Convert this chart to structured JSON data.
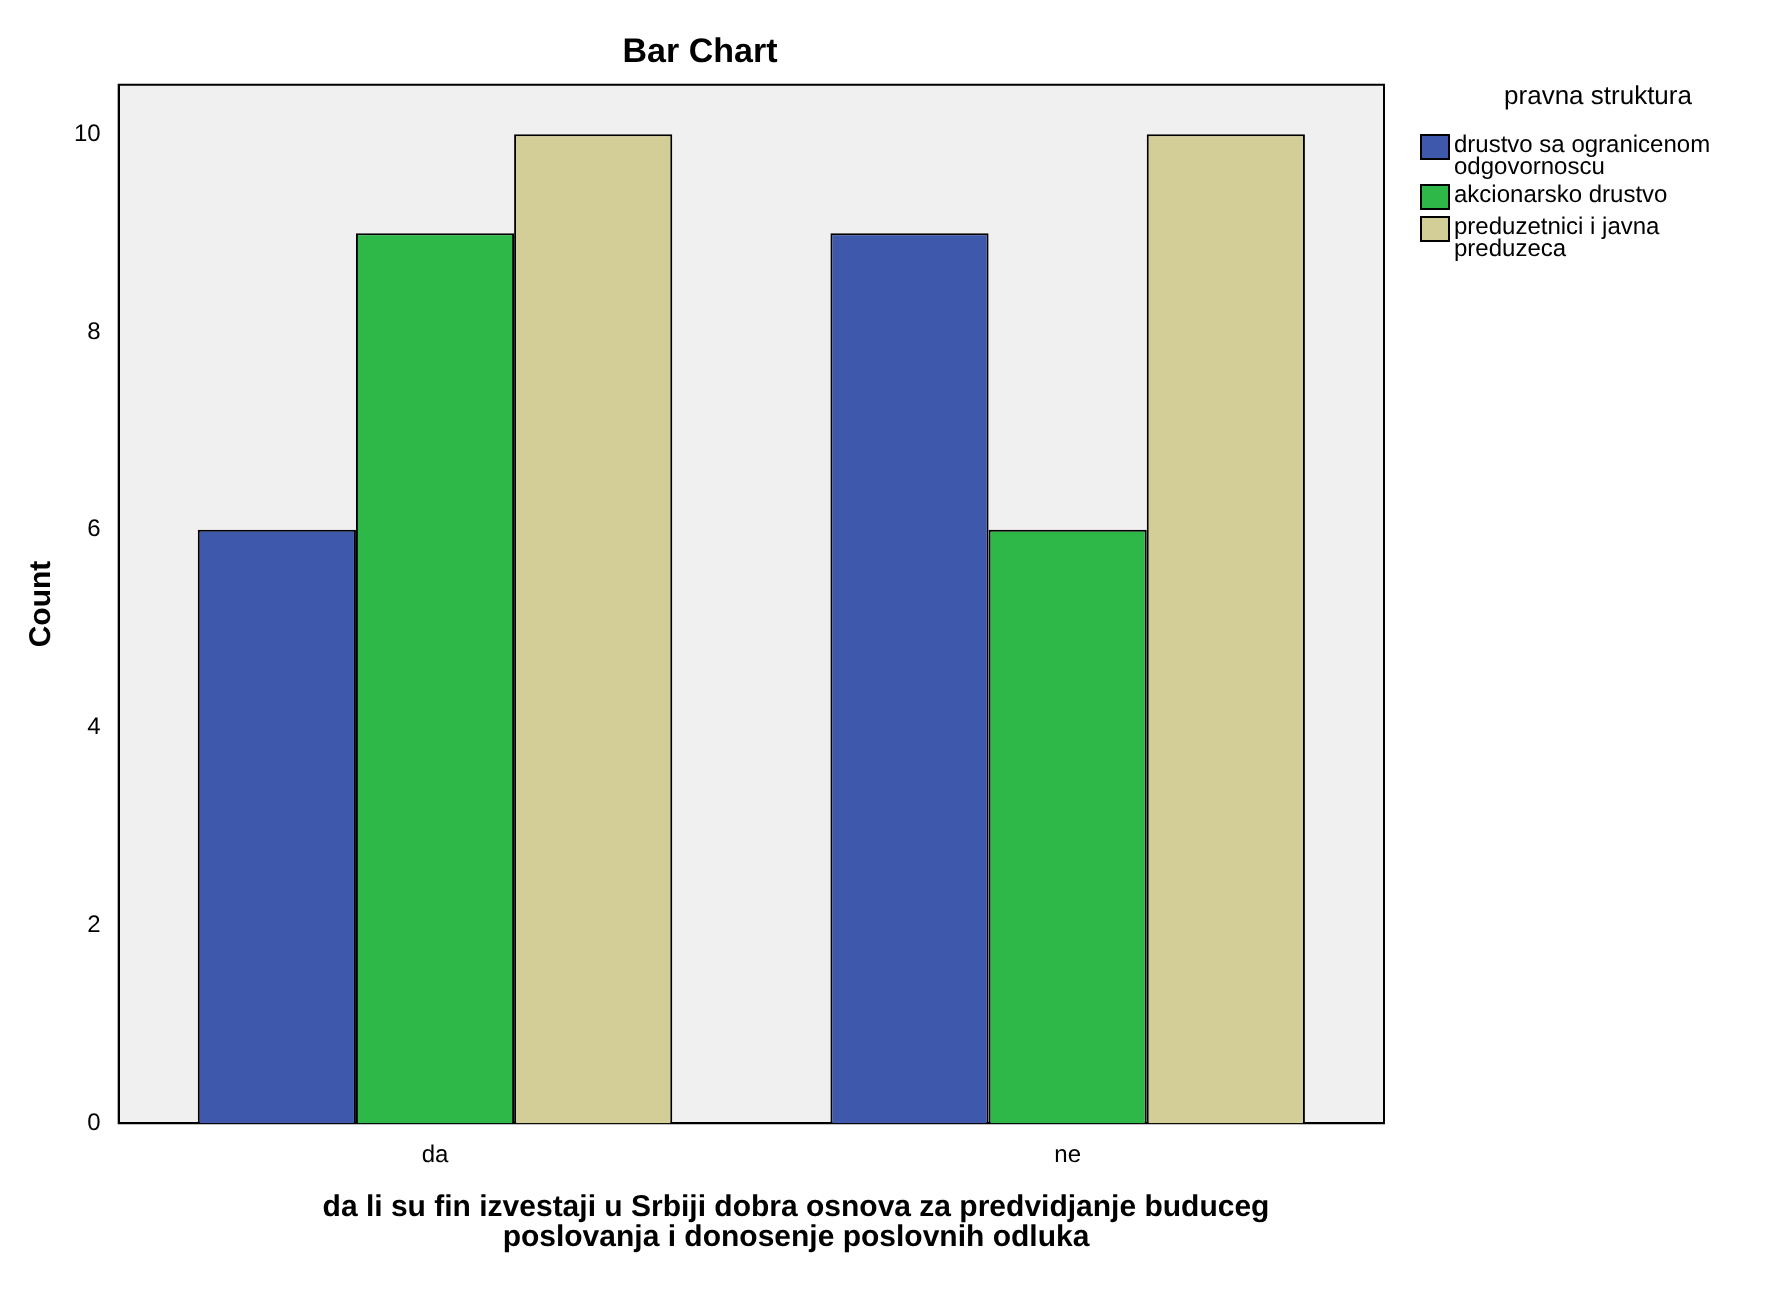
{
  "chart_data": {
    "type": "bar",
    "title": "Bar Chart",
    "xlabel": "da li su fin izvestaji u Srbiji dobra osnova za predvidjanje buduceg poslovanja i donosenje poslovnih odluka",
    "ylabel": "Count",
    "legend_title": "pravna struktura",
    "categories": [
      "da",
      "ne"
    ],
    "series": [
      {
        "name": "drustvo sa ogranicenom odgovornoscu",
        "color": "#3e58ac",
        "values": [
          6,
          9
        ]
      },
      {
        "name": "akcionarsko drustvo",
        "color": "#2eb848",
        "values": [
          9,
          6
        ]
      },
      {
        "name": "preduzetnici i javna preduzeca",
        "color": "#d3ce97",
        "values": [
          10,
          10
        ]
      }
    ],
    "ylim": [
      0,
      10.5
    ],
    "yticks": [
      0,
      2,
      4,
      6,
      8,
      10
    ],
    "grid": false,
    "legend": "right"
  }
}
